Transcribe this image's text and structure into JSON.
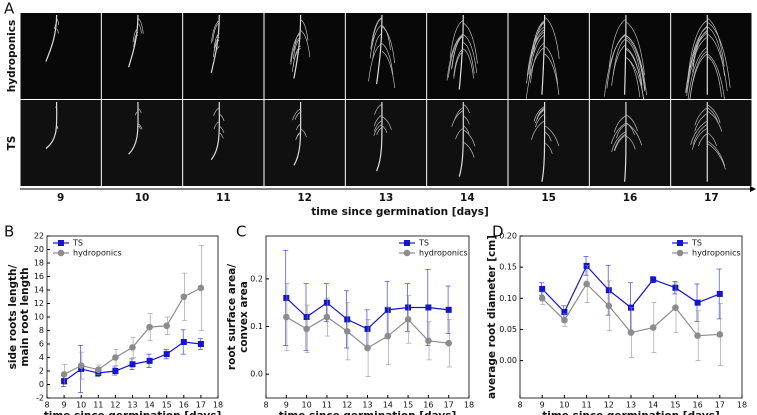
{
  "panel_a": {
    "label": "A",
    "rows": [
      "hydroponics",
      "TS"
    ],
    "days": [
      9,
      10,
      11,
      12,
      13,
      14,
      15,
      16,
      17
    ],
    "xlabel": "time since germination [days]"
  },
  "chart_data": [
    {
      "type": "line",
      "panel_label": "B",
      "xlabel": "time since germination [days]",
      "ylabel": [
        "side roots length/",
        "main root length"
      ],
      "x": [
        9,
        10,
        11,
        12,
        13,
        14,
        15,
        16,
        17
      ],
      "xlim": [
        8,
        18
      ],
      "xticks": [
        8,
        9,
        10,
        11,
        12,
        13,
        14,
        15,
        16,
        17,
        18
      ],
      "ylim": [
        -2,
        22
      ],
      "yticks": [
        -2,
        0,
        2,
        4,
        6,
        8,
        10,
        12,
        14,
        16,
        18,
        20,
        22
      ],
      "legend": "upper left",
      "series": [
        {
          "name": "TS",
          "color": "#1515d0",
          "marker": "square",
          "values": [
            0.5,
            2.3,
            1.7,
            2.0,
            3.0,
            3.5,
            4.5,
            6.3,
            6.0
          ],
          "errors": [
            0.8,
            3.5,
            0.5,
            0.6,
            0.8,
            1.0,
            0.7,
            1.8,
            0.8
          ]
        },
        {
          "name": "hydroponics",
          "color": "#8c8c8c",
          "marker": "circle",
          "values": [
            1.5,
            2.8,
            2.2,
            4.0,
            5.5,
            8.5,
            8.7,
            13.0,
            14.3
          ],
          "errors": [
            1.5,
            2.0,
            0.7,
            1.2,
            1.5,
            2.0,
            1.3,
            3.5,
            6.3
          ]
        }
      ]
    },
    {
      "type": "line",
      "panel_label": "C",
      "xlabel": "time since germination [days]",
      "ylabel": [
        "root surface area/",
        "convex area"
      ],
      "x": [
        9,
        10,
        11,
        12,
        13,
        14,
        15,
        16,
        17
      ],
      "xlim": [
        8,
        18
      ],
      "xticks": [
        8,
        9,
        10,
        11,
        12,
        13,
        14,
        15,
        16,
        17,
        18
      ],
      "ylim": [
        -0.05,
        0.29
      ],
      "yticks": [
        {
          "value": 0,
          "label": "0.0"
        },
        0.1,
        0.2
      ],
      "legend": "upper right",
      "series": [
        {
          "name": "TS",
          "color": "#1515d0",
          "marker": "square",
          "values": [
            0.16,
            0.12,
            0.15,
            0.115,
            0.095,
            0.135,
            0.14,
            0.14,
            0.135
          ],
          "errors": [
            0.1,
            0.07,
            0.04,
            0.06,
            0.04,
            0.06,
            0.05,
            0.08,
            0.05
          ]
        },
        {
          "name": "hydroponics",
          "color": "#8c8c8c",
          "marker": "circle",
          "values": [
            0.12,
            0.095,
            0.12,
            0.09,
            0.055,
            0.08,
            0.115,
            0.07,
            0.065
          ],
          "errors": [
            0.07,
            0.05,
            0.04,
            0.06,
            0.06,
            0.06,
            0.05,
            0.04,
            0.05
          ]
        }
      ]
    },
    {
      "type": "line",
      "panel_label": "D",
      "xlabel": "time since germination [days]",
      "ylabel": [
        "average root diameter [cm]"
      ],
      "x": [
        9,
        10,
        11,
        12,
        13,
        14,
        15,
        16,
        17
      ],
      "xlim": [
        8,
        18
      ],
      "xticks": [
        8,
        9,
        10,
        11,
        12,
        13,
        14,
        15,
        16,
        17,
        18
      ],
      "ylim": [
        -0.06,
        0.2
      ],
      "yticks": [
        {
          "value": 0,
          "label": "0.00"
        },
        0.05,
        {
          "value": 0.1,
          "label": "0.10"
        },
        0.15,
        {
          "value": 0.2,
          "label": "0.20"
        }
      ],
      "legend": "upper right",
      "series": [
        {
          "name": "TS",
          "color": "#1515d0",
          "marker": "square",
          "values": [
            0.115,
            0.078,
            0.152,
            0.113,
            0.085,
            0.13,
            0.117,
            0.093,
            0.107
          ],
          "errors": [
            0.01,
            0.01,
            0.015,
            0.04,
            0.04,
            0.005,
            0.01,
            0.03,
            0.04
          ]
        },
        {
          "name": "hydroponics",
          "color": "#8c8c8c",
          "marker": "circle",
          "values": [
            0.1,
            0.065,
            0.123,
            0.088,
            0.045,
            0.053,
            0.085,
            0.04,
            0.042
          ],
          "errors": [
            0.01,
            0.01,
            0.03,
            0.04,
            0.04,
            0.04,
            0.04,
            0.04,
            0.05
          ]
        }
      ]
    }
  ]
}
